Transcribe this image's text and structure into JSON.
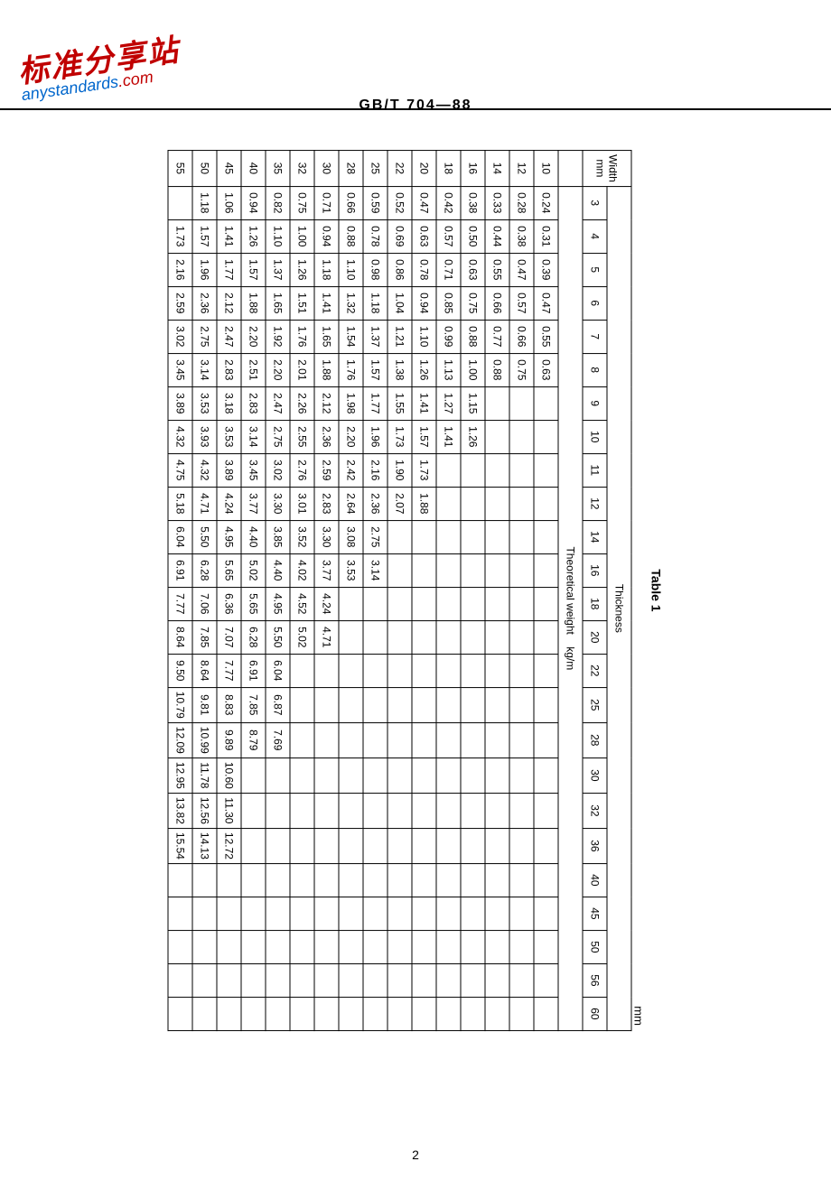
{
  "watermark": {
    "cn": "标准分享站",
    "en_prefix": "anystandards",
    "en_suffix": ".com"
  },
  "header_code": "GB/T  704—88",
  "table": {
    "caption": "Table 1",
    "unit_label": "mm",
    "row_header": "Width",
    "row_header_unit": "mm",
    "group_header": "Thickness",
    "tw_header": "Theoretical weight",
    "tw_unit": "kg/m",
    "thickness_cols": [
      "3",
      "4",
      "5",
      "6",
      "7",
      "8",
      "9",
      "10",
      "11",
      "12",
      "14",
      "16",
      "18",
      "20",
      "22",
      "25",
      "28",
      "30",
      "32",
      "36",
      "40",
      "45",
      "50",
      "56",
      "60"
    ],
    "rows": [
      {
        "w": "10",
        "v": [
          "0.24",
          "0.31",
          "0.39",
          "0.47",
          "0.55",
          "0.63",
          "",
          "",
          "",
          "",
          "",
          "",
          "",
          "",
          "",
          "",
          "",
          "",
          "",
          "",
          "",
          "",
          "",
          "",
          ""
        ]
      },
      {
        "w": "12",
        "v": [
          "0.28",
          "0.38",
          "0.47",
          "0.57",
          "0.66",
          "0.75",
          "",
          "",
          "",
          "",
          "",
          "",
          "",
          "",
          "",
          "",
          "",
          "",
          "",
          "",
          "",
          "",
          "",
          "",
          ""
        ]
      },
      {
        "w": "14",
        "v": [
          "0.33",
          "0.44",
          "0.55",
          "0.66",
          "0.77",
          "0.88",
          "",
          "",
          "",
          "",
          "",
          "",
          "",
          "",
          "",
          "",
          "",
          "",
          "",
          "",
          "",
          "",
          "",
          "",
          ""
        ]
      },
      {
        "w": "16",
        "v": [
          "0.38",
          "0.50",
          "0.63",
          "0.75",
          "0.88",
          "1.00",
          "1.15",
          "1.26",
          "",
          "",
          "",
          "",
          "",
          "",
          "",
          "",
          "",
          "",
          "",
          "",
          "",
          "",
          "",
          "",
          ""
        ]
      },
      {
        "w": "18",
        "v": [
          "0.42",
          "0.57",
          "0.71",
          "0.85",
          "0.99",
          "1.13",
          "1.27",
          "1.41",
          "",
          "",
          "",
          "",
          "",
          "",
          "",
          "",
          "",
          "",
          "",
          "",
          "",
          "",
          "",
          "",
          ""
        ]
      },
      {
        "w": "20",
        "v": [
          "0.47",
          "0.63",
          "0.78",
          "0.94",
          "1.10",
          "1.26",
          "1.41",
          "1.57",
          "1.73",
          "1.88",
          "",
          "",
          "",
          "",
          "",
          "",
          "",
          "",
          "",
          "",
          "",
          "",
          "",
          "",
          ""
        ]
      },
      {
        "w": "22",
        "v": [
          "0.52",
          "0.69",
          "0.86",
          "1.04",
          "1.21",
          "1.38",
          "1.55",
          "1.73",
          "1.90",
          "2.07",
          "",
          "",
          "",
          "",
          "",
          "",
          "",
          "",
          "",
          "",
          "",
          "",
          "",
          "",
          ""
        ]
      },
      {
        "w": "25",
        "v": [
          "0.59",
          "0.78",
          "0.98",
          "1.18",
          "1.37",
          "1.57",
          "1.77",
          "1.96",
          "2.16",
          "2.36",
          "2.75",
          "3.14",
          "",
          "",
          "",
          "",
          "",
          "",
          "",
          "",
          "",
          "",
          "",
          "",
          ""
        ]
      },
      {
        "w": "28",
        "v": [
          "0.66",
          "0.88",
          "1.10",
          "1.32",
          "1.54",
          "1.76",
          "1.98",
          "2.20",
          "2.42",
          "2.64",
          "3.08",
          "3.53",
          "",
          "",
          "",
          "",
          "",
          "",
          "",
          "",
          "",
          "",
          "",
          "",
          ""
        ]
      },
      {
        "w": "30",
        "v": [
          "0.71",
          "0.94",
          "1.18",
          "1.41",
          "1.65",
          "1.88",
          "2.12",
          "2.36",
          "2.59",
          "2.83",
          "3.30",
          "3.77",
          "4.24",
          "4.71",
          "",
          "",
          "",
          "",
          "",
          "",
          "",
          "",
          "",
          "",
          ""
        ]
      },
      {
        "w": "32",
        "v": [
          "0.75",
          "1.00",
          "1.26",
          "1.51",
          "1.76",
          "2.01",
          "2.26",
          "2.55",
          "2.76",
          "3.01",
          "3.52",
          "4.02",
          "4.52",
          "5.02",
          "",
          "",
          "",
          "",
          "",
          "",
          "",
          "",
          "",
          "",
          ""
        ]
      },
      {
        "w": "35",
        "v": [
          "0.82",
          "1.10",
          "1.37",
          "1.65",
          "1.92",
          "2.20",
          "2.47",
          "2.75",
          "3.02",
          "3.30",
          "3.85",
          "4.40",
          "4.95",
          "5.50",
          "6.04",
          "6.87",
          "7.69",
          "",
          "",
          "",
          "",
          "",
          "",
          "",
          ""
        ]
      },
      {
        "w": "40",
        "v": [
          "0.94",
          "1.26",
          "1.57",
          "1.88",
          "2.20",
          "2.51",
          "2.83",
          "3.14",
          "3.45",
          "3.77",
          "4.40",
          "5.02",
          "5.65",
          "6.28",
          "6.91",
          "7.85",
          "8.79",
          "",
          "",
          "",
          "",
          "",
          "",
          "",
          ""
        ]
      },
      {
        "w": "45",
        "v": [
          "1.06",
          "1.41",
          "1.77",
          "2.12",
          "2.47",
          "2.83",
          "3.18",
          "3.53",
          "3.89",
          "4.24",
          "4.95",
          "5.65",
          "6.36",
          "7.07",
          "7.77",
          "8.83",
          "9.89",
          "10.60",
          "11.30",
          "12.72",
          "",
          "",
          "",
          "",
          ""
        ]
      },
      {
        "w": "50",
        "v": [
          "1.18",
          "1.57",
          "1.96",
          "2.36",
          "2.75",
          "3.14",
          "3.53",
          "3.93",
          "4.32",
          "4.71",
          "5.50",
          "6.28",
          "7.06",
          "7.85",
          "8.64",
          "9.81",
          "10.99",
          "11.78",
          "12.56",
          "14.13",
          "",
          "",
          "",
          "",
          ""
        ]
      },
      {
        "w": "55",
        "v": [
          "",
          "1.73",
          "2.16",
          "2.59",
          "3.02",
          "3.45",
          "3.89",
          "4.32",
          "4.75",
          "5.18",
          "6.04",
          "6.91",
          "7.77",
          "8.64",
          "9.50",
          "10.79",
          "12.09",
          "12.95",
          "13.82",
          "15.54",
          "",
          "",
          "",
          "",
          ""
        ]
      }
    ]
  },
  "page_number": "2",
  "colors": {
    "red": "#c00000",
    "blue": "#0066cc",
    "border": "#000000",
    "bg": "#ffffff"
  }
}
